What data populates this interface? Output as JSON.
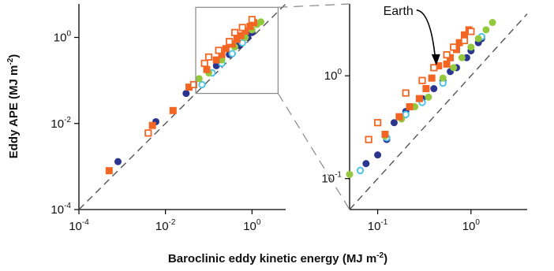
{
  "chart_data": [
    {
      "type": "scatter",
      "xscale": "log",
      "yscale": "log",
      "xlim": [
        0.0001,
        6
      ],
      "ylim": [
        0.0001,
        6
      ],
      "x_ticks": [
        {
          "base": "10",
          "exp": "-4",
          "value": 0.0001
        },
        {
          "base": "10",
          "exp": "-2",
          "value": 0.01
        },
        {
          "base": "10",
          "exp": "0",
          "value": 1
        }
      ],
      "y_ticks": [
        {
          "base": "10",
          "exp": "-4",
          "value": 0.0001
        },
        {
          "base": "10",
          "exp": "-2",
          "value": 0.01
        },
        {
          "base": "10",
          "exp": "0",
          "value": 1
        }
      ],
      "ylabel": {
        "text": "Eddy APE (MJ m",
        "sup": "-2",
        "close": ")"
      },
      "reference_line": "1:1 dashed",
      "grid": false,
      "series": [
        {
          "marker": "filled-circle",
          "color": "#2a3590",
          "points": [
            [
              0.0008,
              0.0013
            ],
            [
              0.006,
              0.011
            ],
            [
              0.03,
              0.05
            ],
            [
              0.15,
              0.22
            ],
            [
              0.3,
              0.4
            ],
            [
              0.5,
              0.65
            ],
            [
              0.8,
              1.0
            ],
            [
              1.0,
              1.3
            ]
          ]
        },
        {
          "marker": "open-circle",
          "color": "#4fc3e8",
          "points": [
            [
              0.07,
              0.08
            ],
            [
              0.12,
              0.15
            ],
            [
              0.2,
              0.25
            ],
            [
              0.35,
              0.42
            ],
            [
              0.6,
              0.75
            ]
          ]
        },
        {
          "marker": "filled-circle",
          "color": "#94c83c",
          "points": [
            [
              0.06,
              0.11
            ],
            [
              0.1,
              0.15
            ],
            [
              0.2,
              0.3
            ],
            [
              0.4,
              0.6
            ],
            [
              0.7,
              1.0
            ],
            [
              1.0,
              1.5
            ],
            [
              1.3,
              2.0
            ],
            [
              1.6,
              2.3
            ]
          ]
        },
        {
          "marker": "filled-square",
          "color": "#f26522",
          "points": [
            [
              0.0005,
              0.0008
            ],
            [
              0.005,
              0.009
            ],
            [
              0.015,
              0.02
            ],
            [
              0.035,
              0.07
            ],
            [
              0.09,
              0.18
            ],
            [
              0.15,
              0.3
            ],
            [
              0.2,
              0.4
            ],
            [
              0.25,
              0.55
            ],
            [
              0.35,
              0.7
            ],
            [
              0.45,
              0.9
            ],
            [
              0.55,
              1.1
            ],
            [
              0.7,
              1.4
            ],
            [
              0.9,
              1.8
            ],
            [
              1.1,
              2.2
            ]
          ]
        },
        {
          "marker": "open-square",
          "color": "#f26522",
          "points": [
            [
              0.004,
              0.006
            ],
            [
              0.045,
              0.08
            ],
            [
              0.08,
              0.25
            ],
            [
              0.1,
              0.35
            ],
            [
              0.17,
              0.5
            ],
            [
              0.3,
              0.8
            ],
            [
              0.4,
              1.3
            ],
            [
              0.6,
              1.7
            ],
            [
              1.0,
              2.6
            ]
          ]
        }
      ]
    },
    {
      "type": "scatter",
      "xscale": "log",
      "yscale": "log",
      "xlim": [
        0.05,
        4
      ],
      "ylim": [
        0.05,
        5
      ],
      "x_ticks": [
        {
          "base": "10",
          "exp": "-1",
          "value": 0.1
        },
        {
          "base": "10",
          "exp": "0",
          "value": 1
        }
      ],
      "y_ticks": [
        {
          "base": "10",
          "exp": "-1",
          "value": 0.1
        },
        {
          "base": "10",
          "exp": "0",
          "value": 1
        }
      ],
      "reference_line": "1:1 dashed",
      "annotation": {
        "text": "Earth",
        "x": 0.45,
        "y": 1.1
      },
      "series": [
        {
          "marker": "filled-circle",
          "color": "#2a3590",
          "points": [
            [
              0.075,
              0.14
            ],
            [
              0.1,
              0.17
            ],
            [
              0.125,
              0.24
            ],
            [
              0.15,
              0.35
            ],
            [
              0.2,
              0.45
            ],
            [
              0.3,
              0.6
            ],
            [
              0.4,
              0.75
            ],
            [
              0.5,
              0.9
            ],
            [
              0.6,
              1.1
            ],
            [
              0.7,
              1.2
            ],
            [
              0.9,
              1.5
            ],
            [
              1.0,
              1.75
            ],
            [
              1.2,
              2.1
            ],
            [
              1.3,
              2.3
            ]
          ]
        },
        {
          "marker": "open-circle",
          "color": "#4fc3e8",
          "points": [
            [
              0.065,
              0.12
            ],
            [
              0.125,
              0.25
            ],
            [
              0.2,
              0.42
            ],
            [
              0.3,
              0.55
            ],
            [
              0.5,
              0.85
            ],
            [
              1.3,
              2.4
            ]
          ]
        },
        {
          "marker": "filled-circle",
          "color": "#94c83c",
          "points": [
            [
              0.05,
              0.11
            ],
            [
              0.12,
              0.26
            ],
            [
              0.18,
              0.38
            ],
            [
              0.25,
              0.5
            ],
            [
              0.35,
              0.62
            ],
            [
              0.5,
              0.95
            ],
            [
              0.65,
              1.2
            ],
            [
              0.8,
              1.5
            ],
            [
              1.0,
              1.9
            ],
            [
              1.2,
              2.3
            ],
            [
              1.45,
              2.8
            ],
            [
              1.7,
              3.3
            ]
          ]
        },
        {
          "marker": "filled-square",
          "color": "#f26522",
          "points": [
            [
              0.12,
              0.27
            ],
            [
              0.17,
              0.4
            ],
            [
              0.22,
              0.5
            ],
            [
              0.28,
              0.6
            ],
            [
              0.33,
              0.75
            ],
            [
              0.38,
              0.95
            ],
            [
              0.45,
              1.25
            ],
            [
              0.55,
              1.3
            ],
            [
              0.6,
              1.5
            ],
            [
              0.7,
              1.8
            ],
            [
              0.75,
              2.1
            ],
            [
              0.85,
              2.5
            ],
            [
              0.95,
              2.8
            ]
          ]
        },
        {
          "marker": "open-square",
          "color": "#f26522",
          "points": [
            [
              0.08,
              0.24
            ],
            [
              0.1,
              0.35
            ],
            [
              0.2,
              0.68
            ],
            [
              0.3,
              0.9
            ],
            [
              0.4,
              1.2
            ],
            [
              0.55,
              1.6
            ],
            [
              0.65,
              1.9
            ],
            [
              0.85,
              2.2
            ],
            [
              1.0,
              2.7
            ]
          ]
        }
      ]
    }
  ],
  "xlabel": {
    "text": "Baroclinic eddy kinetic energy (MJ m",
    "sup": "-2",
    "close": ")"
  }
}
